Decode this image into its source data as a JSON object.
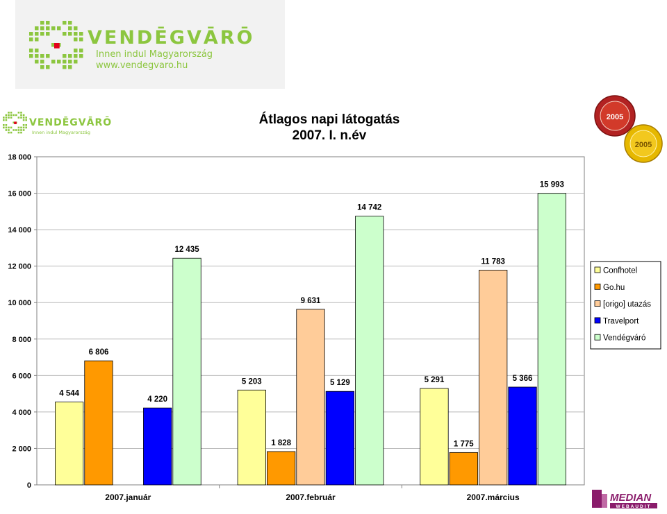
{
  "brand": {
    "name": "VENDĒGVĀRŌ",
    "tagline": "Innen indul Magyarország",
    "url": "www.vendegvaro.hu"
  },
  "badges": {
    "badge_top": "2005",
    "badge_bottom": "2005"
  },
  "corner_logo": {
    "name": "MEDIAN",
    "sub": "WEBAUDIT"
  },
  "colors": {
    "brand_green": "#8cc63f",
    "brand_red": "#e2001a",
    "gridline": "#b8b8b8",
    "plot_border": "#808080",
    "median_purple": "#8a1c6b"
  },
  "chart_data": {
    "type": "bar",
    "title": "Átlagos napi látogatás",
    "subtitle": "2007. I. n.év",
    "categories": [
      "2007.január",
      "2007.február",
      "2007.március"
    ],
    "series": [
      {
        "name": "Confhotel",
        "color": "#ffff99",
        "values": [
          4544,
          5203,
          5291
        ],
        "labels": [
          "4 544",
          "5 203",
          "5 291"
        ]
      },
      {
        "name": "Go.hu",
        "color": "#ff9900",
        "values": [
          6806,
          1828,
          1775
        ],
        "labels": [
          "6 806",
          "1 828",
          "1 775"
        ]
      },
      {
        "name": "[origo] utazás",
        "color": "#ffcc99",
        "values": [
          null,
          9631,
          11783
        ],
        "labels": [
          "",
          "9 631",
          "11 783"
        ]
      },
      {
        "name": "Travelport",
        "color": "#0000ff",
        "values": [
          4220,
          5129,
          5366
        ],
        "labels": [
          "4 220",
          "5 129",
          "5 366"
        ]
      },
      {
        "name": "Vendégváró",
        "color": "#ccffcc",
        "values": [
          12435,
          14742,
          15993
        ],
        "labels": [
          "12 435",
          "14 742",
          "15 993"
        ]
      }
    ],
    "yticks": [
      0,
      2000,
      4000,
      6000,
      8000,
      10000,
      12000,
      14000,
      16000,
      18000
    ],
    "ytick_labels": [
      "0",
      "2 000",
      "4 000",
      "6 000",
      "8 000",
      "10 000",
      "12 000",
      "14 000",
      "16 000",
      "18 000"
    ],
    "ylim": [
      0,
      18000
    ],
    "grid": true,
    "legend_position": "right"
  }
}
